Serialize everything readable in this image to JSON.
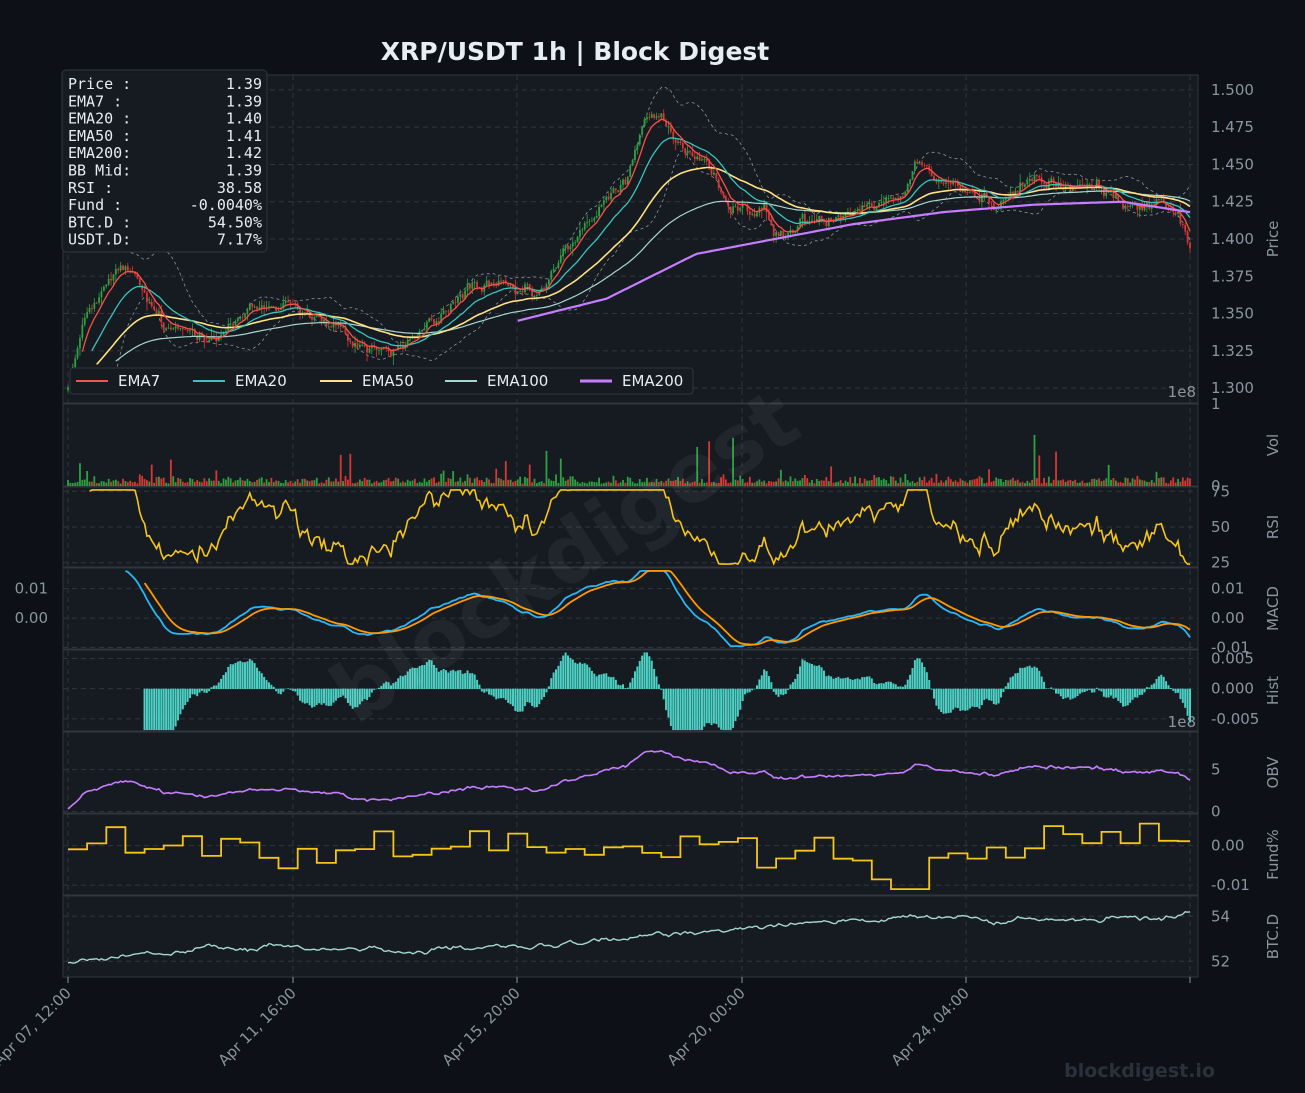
{
  "title": "XRP/USDT  1h  |  Block Digest",
  "watermark": "blockdigest",
  "footer_brand": "blockdigest.io",
  "colors": {
    "background": "#0d1117",
    "panel": "#161b22",
    "grid": "#30363d",
    "text": "#e6edf3",
    "muted": "#8b949e",
    "up": "#2ea043",
    "down": "#da3633",
    "ema7": "#f85149",
    "ema20": "#39c5bb",
    "ema50": "#ffe082",
    "ema100": "#a5d6d0",
    "ema200": "#c77dff",
    "rsi": "#f5c518",
    "macd": "#29b6f6",
    "signal": "#ff9800",
    "hist": "#4dd0c4",
    "obv": "#c77dff",
    "fund": "#f5c518",
    "btcd": "#a5d6d0"
  },
  "info_box": [
    {
      "label": "Price :",
      "value": "1.39"
    },
    {
      "label": "EMA7  :",
      "value": "1.39"
    },
    {
      "label": "EMA20 :",
      "value": "1.40"
    },
    {
      "label": "EMA50 :",
      "value": "1.41"
    },
    {
      "label": "EMA200:",
      "value": "1.42"
    },
    {
      "label": "BB Mid:",
      "value": "1.39"
    },
    {
      "label": "RSI   :",
      "value": "38.58"
    },
    {
      "label": "Fund  :",
      "value": "-0.0040%"
    },
    {
      "label": "BTC.D :",
      "value": "54.50%"
    },
    {
      "label": "USDT.D:",
      "value": "7.17%"
    }
  ],
  "chart_data": {
    "type": "line",
    "x_ticks": [
      "Apr 07, 12:00",
      "Apr 11, 16:00",
      "Apr 15, 20:00",
      "Apr 20, 00:00",
      "Apr 24, 04:00"
    ],
    "price_panel": {
      "ylabel": "Price",
      "yticks": [
        "1.300",
        "1.325",
        "1.350",
        "1.375",
        "1.400",
        "1.425",
        "1.450",
        "1.475",
        "1.500"
      ],
      "ylim": [
        1.29,
        1.51
      ],
      "legend": [
        "EMA7",
        "EMA20",
        "EMA50",
        "EMA100",
        "EMA200"
      ],
      "price_anchors": [
        [
          0,
          1.305
        ],
        [
          0.02,
          1.355
        ],
        [
          0.05,
          1.38
        ],
        [
          0.09,
          1.335
        ],
        [
          0.15,
          1.345
        ],
        [
          0.2,
          1.36
        ],
        [
          0.25,
          1.33
        ],
        [
          0.29,
          1.325
        ],
        [
          0.33,
          1.345
        ],
        [
          0.36,
          1.37
        ],
        [
          0.4,
          1.36
        ],
        [
          0.42,
          1.36
        ],
        [
          0.46,
          1.41
        ],
        [
          0.49,
          1.43
        ],
        [
          0.5,
          1.44
        ],
        [
          0.51,
          1.475
        ],
        [
          0.52,
          1.49
        ],
        [
          0.53,
          1.48
        ],
        [
          0.55,
          1.46
        ],
        [
          0.58,
          1.43
        ],
        [
          0.62,
          1.42
        ],
        [
          0.6,
          1.425
        ],
        [
          0.63,
          1.4
        ],
        [
          0.67,
          1.415
        ],
        [
          0.7,
          1.425
        ],
        [
          0.74,
          1.43
        ],
        [
          0.76,
          1.455
        ],
        [
          0.79,
          1.44
        ],
        [
          0.83,
          1.42
        ],
        [
          0.86,
          1.44
        ],
        [
          0.9,
          1.435
        ],
        [
          0.93,
          1.43
        ],
        [
          0.97,
          1.425
        ],
        [
          0.99,
          1.42
        ],
        [
          1.0,
          1.39
        ]
      ],
      "ema200_anchors": [
        [
          0.4,
          1.345
        ],
        [
          0.48,
          1.36
        ],
        [
          0.56,
          1.39
        ],
        [
          0.63,
          1.4
        ],
        [
          0.7,
          1.41
        ],
        [
          0.78,
          1.418
        ],
        [
          0.86,
          1.423
        ],
        [
          0.94,
          1.425
        ],
        [
          1.0,
          1.418
        ]
      ]
    },
    "vol_panel": {
      "ylabel": "Vol",
      "yticks": [
        "0",
        "1"
      ],
      "ylim": [
        0,
        1
      ],
      "exponent": "1e8"
    },
    "rsi_panel": {
      "ylabel": "RSI",
      "yticks": [
        "25",
        "50",
        "75"
      ],
      "ylim": [
        22,
        78
      ]
    },
    "macd_panel": {
      "ylabel": "MACD",
      "yticks_left": [
        "0.00",
        "0.01"
      ],
      "yticks": [
        "0.00",
        "0.01",
        "-0.01"
      ],
      "ylim": [
        -0.0105,
        0.017
      ]
    },
    "hist_panel": {
      "ylabel": "Hist",
      "yticks": [
        "-0.005",
        "0.000",
        "0.005"
      ],
      "ylim": [
        -0.007,
        0.0064
      ],
      "exponent": "1e8"
    },
    "obv_panel": {
      "ylabel": "OBV",
      "yticks": [
        "0",
        "5"
      ],
      "ylim": [
        -0.2,
        9.5
      ]
    },
    "fund_panel": {
      "ylabel": "Fund%",
      "yticks": [
        "0.00",
        "-0.01"
      ],
      "ylim": [
        -0.0125,
        0.008
      ]
    },
    "btcd_panel": {
      "ylabel": "BTC.D",
      "yticks": [
        "52",
        "54"
      ],
      "ylim": [
        51.3,
        54.9
      ]
    }
  }
}
